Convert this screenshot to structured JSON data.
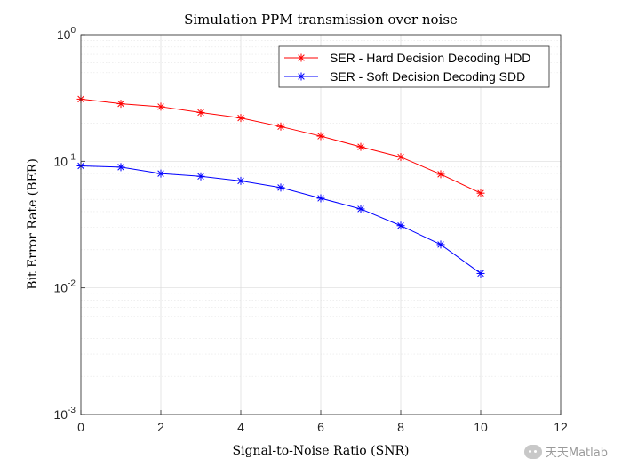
{
  "chart_data": {
    "type": "line",
    "title": "Simulation PPM transmission over noise",
    "xlabel": "Signal-to-Noise Ratio (SNR)",
    "ylabel": "Bit Error Rate (BER)",
    "xlim": [
      0,
      12
    ],
    "ylim": [
      0.001,
      1
    ],
    "yscale": "log",
    "x_ticks": [
      "0",
      "2",
      "4",
      "6",
      "8",
      "10",
      "12"
    ],
    "y_ticks": [
      {
        "base": "10",
        "exp": "0"
      },
      {
        "base": "10",
        "exp": "-1"
      },
      {
        "base": "10",
        "exp": "-2"
      },
      {
        "base": "10",
        "exp": "-3"
      }
    ],
    "grid": true,
    "minor_grid": true,
    "legend_position": "top-right",
    "x": [
      0,
      1,
      2,
      3,
      4,
      5,
      6,
      7,
      8,
      9,
      10
    ],
    "series": [
      {
        "name": "SER - Hard Decision Decoding HDD",
        "color": "#ff0000",
        "marker": "asterisk",
        "values": [
          0.31,
          0.285,
          0.27,
          0.243,
          0.22,
          0.188,
          0.158,
          0.13,
          0.108,
          0.079,
          0.056
        ]
      },
      {
        "name": "SER - Soft Decision Decoding SDD",
        "color": "#0000ff",
        "marker": "asterisk",
        "values": [
          0.092,
          0.09,
          0.08,
          0.076,
          0.07,
          0.062,
          0.051,
          0.042,
          0.031,
          0.022,
          0.013
        ]
      }
    ]
  },
  "watermark": {
    "text": "天天Matlab",
    "icon": "wechat-icon"
  }
}
